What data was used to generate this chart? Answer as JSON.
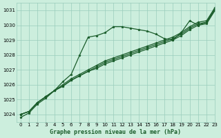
{
  "title": "Graphe pression niveau de la mer (hPa)",
  "bg_color": "#cceedd",
  "grid_color": "#99ccbb",
  "line_color": "#1a5c2a",
  "xlim": [
    -0.5,
    23
  ],
  "ylim": [
    1023.5,
    1031.5
  ],
  "yticks": [
    1024,
    1025,
    1026,
    1027,
    1028,
    1029,
    1030,
    1031
  ],
  "xticks": [
    0,
    1,
    2,
    3,
    4,
    5,
    6,
    7,
    8,
    9,
    10,
    11,
    12,
    13,
    14,
    15,
    16,
    17,
    18,
    19,
    20,
    21,
    22,
    23
  ],
  "series_zigzag": [
    1023.8,
    1024.1,
    1024.7,
    1025.1,
    1025.6,
    1026.2,
    1026.7,
    1028.0,
    1029.2,
    1029.3,
    1029.5,
    1029.9,
    1029.9,
    1029.8,
    1029.7,
    1029.6,
    1029.4,
    1029.1,
    1029.0,
    1029.5,
    1030.3,
    1030.0,
    1030.2,
    1031.1
  ],
  "series_parallel": [
    [
      1024.0,
      1024.2,
      1024.8,
      1025.2,
      1025.6,
      1025.9,
      1026.3,
      1026.6,
      1026.9,
      1027.1,
      1027.4,
      1027.6,
      1027.8,
      1028.0,
      1028.2,
      1028.4,
      1028.6,
      1028.8,
      1029.0,
      1029.3,
      1029.7,
      1030.0,
      1030.1,
      1031.0
    ],
    [
      1024.0,
      1024.2,
      1024.8,
      1025.2,
      1025.6,
      1025.9,
      1026.3,
      1026.6,
      1026.9,
      1027.2,
      1027.5,
      1027.7,
      1027.9,
      1028.1,
      1028.3,
      1028.5,
      1028.7,
      1028.9,
      1029.1,
      1029.4,
      1029.8,
      1030.1,
      1030.2,
      1031.1
    ],
    [
      1024.0,
      1024.2,
      1024.8,
      1025.2,
      1025.6,
      1026.0,
      1026.4,
      1026.7,
      1027.0,
      1027.3,
      1027.6,
      1027.8,
      1028.0,
      1028.2,
      1028.4,
      1028.6,
      1028.8,
      1029.0,
      1029.2,
      1029.5,
      1029.9,
      1030.2,
      1030.3,
      1031.2
    ]
  ],
  "marker": "*",
  "markersize": 2.5,
  "linewidth": 0.9,
  "xlabel_fontsize": 6,
  "tick_fontsize": 5
}
